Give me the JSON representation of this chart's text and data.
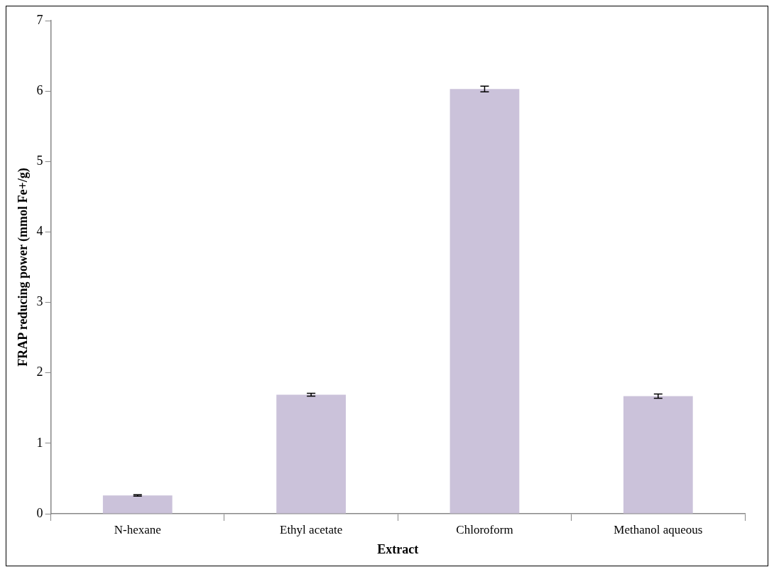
{
  "chart_data": {
    "type": "bar",
    "xlabel": "Extract",
    "ylabel": "FRAP reducing power (mmol Fe+/g)",
    "categories": [
      "N-hexane",
      "Ethyl acetate",
      "Chloroform",
      "Methanol aqueous"
    ],
    "values": [
      0.26,
      1.69,
      6.03,
      1.67
    ],
    "errors": [
      0.01,
      0.02,
      0.04,
      0.03
    ],
    "color": "#cbc2da",
    "ylim": [
      0,
      7
    ],
    "yticks": [
      0,
      1,
      2,
      3,
      4,
      5,
      6,
      7
    ],
    "grid": false,
    "legend": false
  }
}
